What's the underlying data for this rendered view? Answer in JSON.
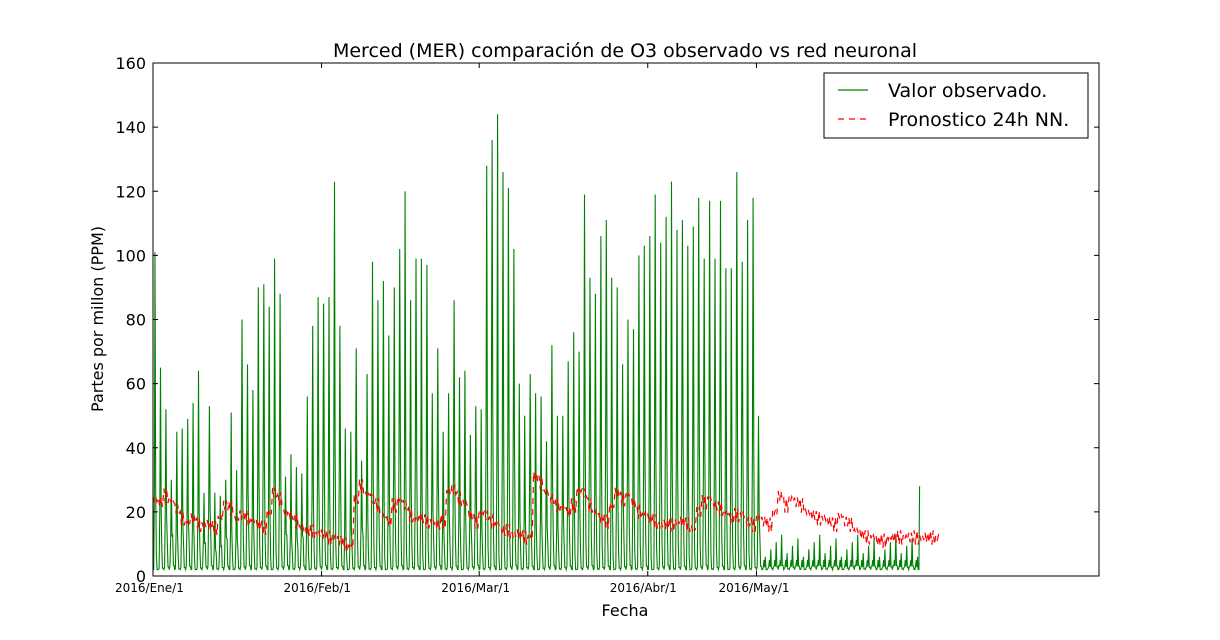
{
  "chart_data": {
    "type": "line",
    "title": "Merced (MER) comparación de O3 observado vs red neuronal",
    "xlabel": "Fecha",
    "ylabel": "Partes por millon (PPM)",
    "xlim": [
      0,
      174
    ],
    "ylim": [
      0,
      160
    ],
    "yticks": [
      0,
      20,
      40,
      60,
      80,
      100,
      120,
      140,
      160
    ],
    "xticks": [
      {
        "label": "2016/Ene/1",
        "x": 0
      },
      {
        "label": "2016/Feb/1",
        "x": 31
      },
      {
        "label": "2016/Mar/1",
        "x": 60
      },
      {
        "label": "2016/Abr/1",
        "x": 91
      },
      {
        "label": "2016/May/1",
        "x": 111
      }
    ],
    "grid": false,
    "legend_position": "top-right",
    "series": [
      {
        "name": "Valor observado.",
        "color": "#008000",
        "style": "solid",
        "baseline": 2,
        "data_end": 145,
        "daily_peaks": [
          101,
          65,
          52,
          30,
          45,
          46,
          49,
          54,
          64,
          26,
          53,
          26,
          25,
          30,
          51,
          33,
          80,
          66,
          58,
          90,
          91,
          84,
          99,
          88,
          31,
          38,
          34,
          32,
          56,
          78,
          87,
          85,
          87,
          123,
          78,
          46,
          45,
          71,
          36,
          63,
          98,
          86,
          92,
          75,
          90,
          102,
          120,
          86,
          99,
          99,
          97,
          57,
          71,
          45,
          57,
          86,
          62,
          64,
          44,
          53,
          52,
          128,
          136,
          144,
          126,
          121,
          102,
          60,
          50,
          63,
          57,
          56,
          42,
          72,
          50,
          50,
          67,
          76,
          70,
          119,
          93,
          88,
          106,
          111,
          93,
          90,
          66,
          80,
          77,
          100,
          103,
          106,
          119,
          104,
          112,
          123,
          108,
          111,
          103,
          109,
          118,
          99,
          117,
          99,
          117,
          96,
          96,
          126,
          98,
          111,
          118,
          50,
          5,
          5,
          5,
          5,
          5,
          5,
          5,
          5,
          5,
          5,
          5,
          5,
          5,
          5,
          5,
          5,
          5,
          5,
          5,
          5,
          5,
          5,
          5,
          5,
          5,
          5,
          5,
          5,
          5
        ]
      },
      {
        "name": "Pronostico 24h NN.",
        "color": "#ff0000",
        "style": "dashed",
        "daily_means": [
          24,
          23,
          25,
          24,
          21,
          18,
          17,
          18,
          16,
          16,
          16,
          15,
          18,
          22,
          21,
          18,
          19,
          18,
          17,
          16,
          15,
          20,
          26,
          24,
          20,
          19,
          17,
          15,
          14,
          14,
          13,
          13,
          12,
          12,
          11,
          10,
          9,
          24,
          28,
          26,
          24,
          22,
          19,
          17,
          22,
          24,
          22,
          19,
          18,
          18,
          17,
          17,
          16,
          17,
          26,
          27,
          24,
          23,
          19,
          17,
          20,
          19,
          17,
          16,
          14,
          14,
          13,
          13,
          12,
          12,
          31,
          29,
          26,
          24,
          22,
          21,
          20,
          22,
          27,
          26,
          22,
          20,
          18,
          17,
          22,
          26,
          24,
          25,
          23,
          20,
          19,
          18,
          17,
          16,
          16,
          16,
          17,
          17,
          16,
          15,
          20,
          23,
          24,
          22,
          21,
          20,
          18,
          19,
          19,
          17,
          16,
          18,
          17,
          16,
          20,
          25,
          22,
          24,
          23,
          22,
          20,
          19,
          18,
          18,
          17,
          16,
          19,
          17,
          16,
          14,
          13,
          12,
          12,
          11,
          11,
          12,
          12,
          12,
          12,
          12,
          12,
          12,
          12,
          12,
          12
        ]
      }
    ]
  }
}
